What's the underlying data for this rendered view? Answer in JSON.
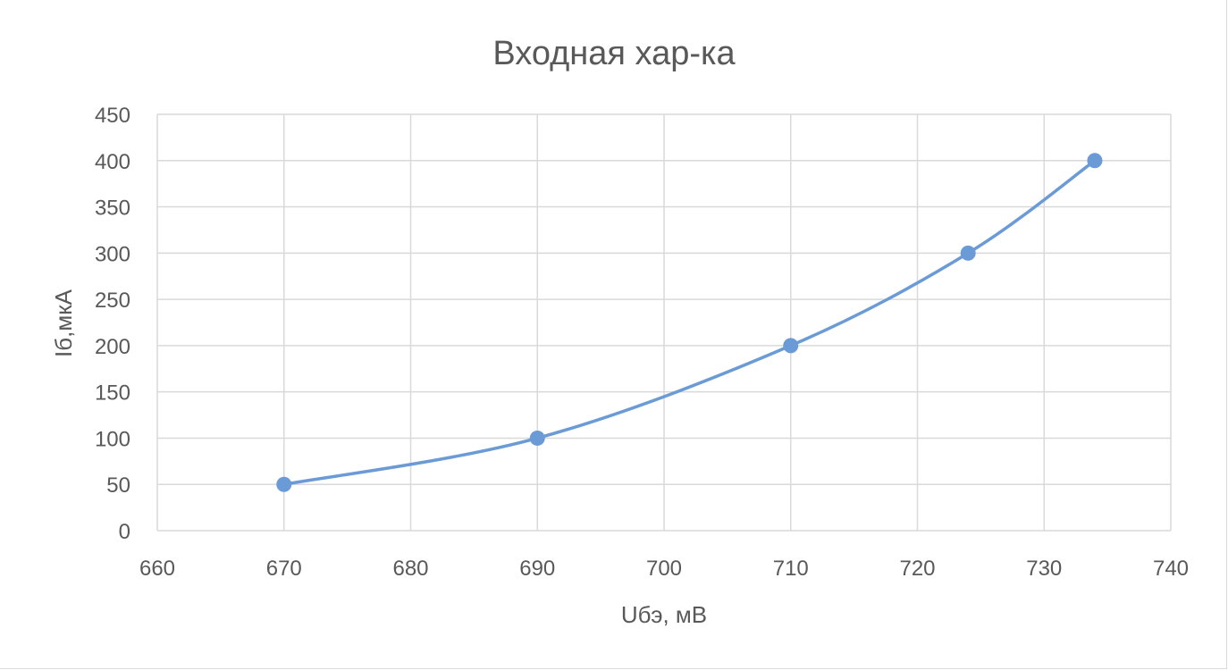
{
  "chart_data": {
    "type": "scatter",
    "title": "Входная хар-ка",
    "xlabel": "Uбэ, мВ",
    "ylabel": "Iб,мкА",
    "xlim": [
      660,
      740
    ],
    "ylim": [
      0,
      450
    ],
    "xticks": [
      "660",
      "670",
      "680",
      "690",
      "700",
      "710",
      "720",
      "730",
      "740"
    ],
    "yticks": [
      "0",
      "50",
      "100",
      "150",
      "200",
      "250",
      "300",
      "350",
      "400",
      "450"
    ],
    "grid": true,
    "smooth": true,
    "series": [
      {
        "color": "#6a9bd6",
        "x": [
          670,
          690,
          710,
          724,
          734
        ],
        "y": [
          50,
          100,
          200,
          300,
          400
        ]
      }
    ]
  }
}
